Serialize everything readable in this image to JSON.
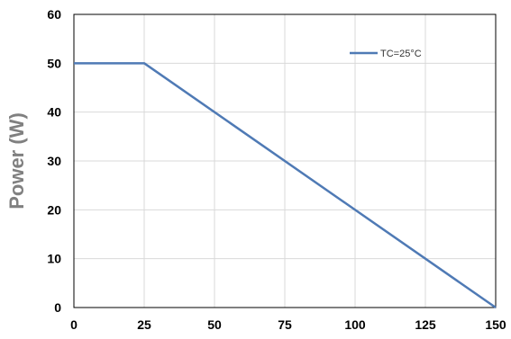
{
  "chart_data": {
    "type": "line",
    "title": "",
    "xlabel": "",
    "ylabel": "Power (W)",
    "xlim": [
      0,
      150
    ],
    "ylim": [
      0,
      60
    ],
    "x_ticks": [
      0,
      25,
      50,
      75,
      100,
      125,
      150
    ],
    "y_ticks": [
      0,
      10,
      20,
      30,
      40,
      50,
      60
    ],
    "grid": true,
    "legend_position": "top-right",
    "series": [
      {
        "name": "TC=25°C",
        "color": "#4F7AB5",
        "x": [
          0,
          25,
          150
        ],
        "y": [
          50,
          50,
          0
        ]
      }
    ]
  }
}
